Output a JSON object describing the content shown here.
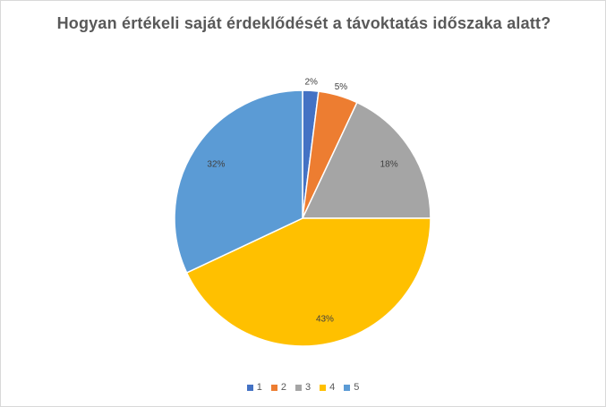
{
  "chart_data": {
    "type": "pie",
    "title": "Hogyan értékeli saját érdeklődését a távoktatás időszaka alatt?",
    "categories": [
      "1",
      "2",
      "3",
      "4",
      "5"
    ],
    "values": [
      2,
      5,
      18,
      43,
      32
    ],
    "data_labels": [
      "2%",
      "5%",
      "18%",
      "43%",
      "32%"
    ],
    "colors": [
      "#4472C4",
      "#ED7D31",
      "#A5A5A5",
      "#FFC000",
      "#5B9BD5"
    ],
    "legend": "bottom"
  }
}
